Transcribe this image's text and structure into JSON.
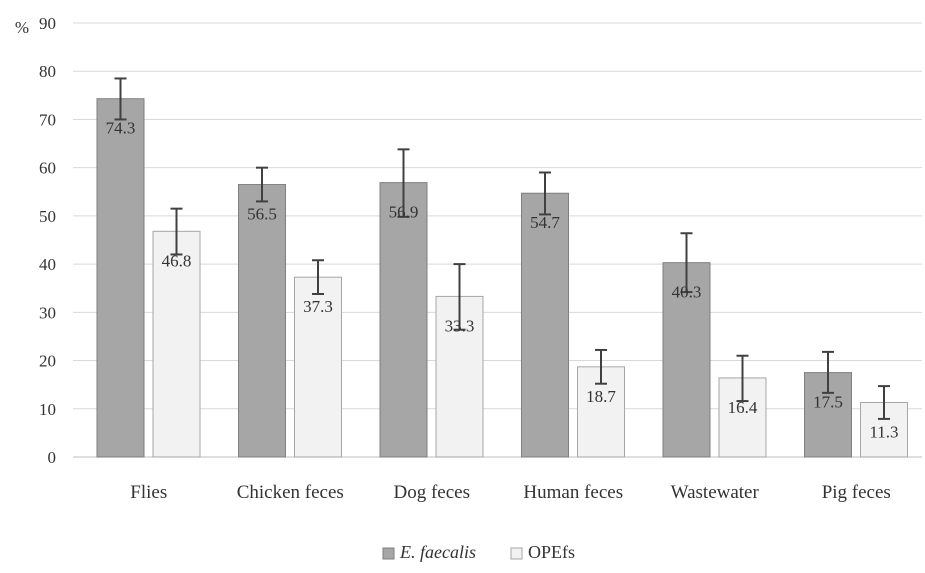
{
  "chart_data": {
    "type": "bar",
    "ylabel": "%",
    "ylim": [
      0,
      90
    ],
    "yticks": [
      0,
      10,
      20,
      30,
      40,
      50,
      60,
      70,
      80,
      90
    ],
    "grid": true,
    "legend_position": "bottom",
    "categories": [
      "Flies",
      "Chicken feces",
      "Dog feces",
      "Human feces",
      "Wastewater",
      "Pig feces"
    ],
    "series": [
      {
        "name": "E. faecalis",
        "color": "#a6a6a6",
        "values": [
          74.3,
          56.5,
          56.9,
          54.7,
          40.3,
          17.5
        ],
        "data_labels": [
          "74.3",
          "56.5",
          "56.9",
          "54.7",
          "40.3",
          "17.5"
        ],
        "error_low": [
          70.0,
          53.0,
          49.8,
          50.3,
          34.2,
          13.3
        ],
        "error_high": [
          78.5,
          60.0,
          63.8,
          59.0,
          46.4,
          21.8
        ]
      },
      {
        "name": "OPEfs",
        "color": "#f2f2f2",
        "values": [
          46.8,
          37.3,
          33.3,
          18.7,
          16.4,
          11.3
        ],
        "data_labels": [
          "46.8",
          "37.3",
          "33.3",
          "18.7",
          "16.4",
          "11.3"
        ],
        "error_low": [
          42.0,
          33.8,
          26.4,
          15.2,
          11.6,
          7.9
        ],
        "error_high": [
          51.5,
          40.8,
          40.0,
          22.2,
          21.0,
          14.7
        ]
      }
    ]
  }
}
